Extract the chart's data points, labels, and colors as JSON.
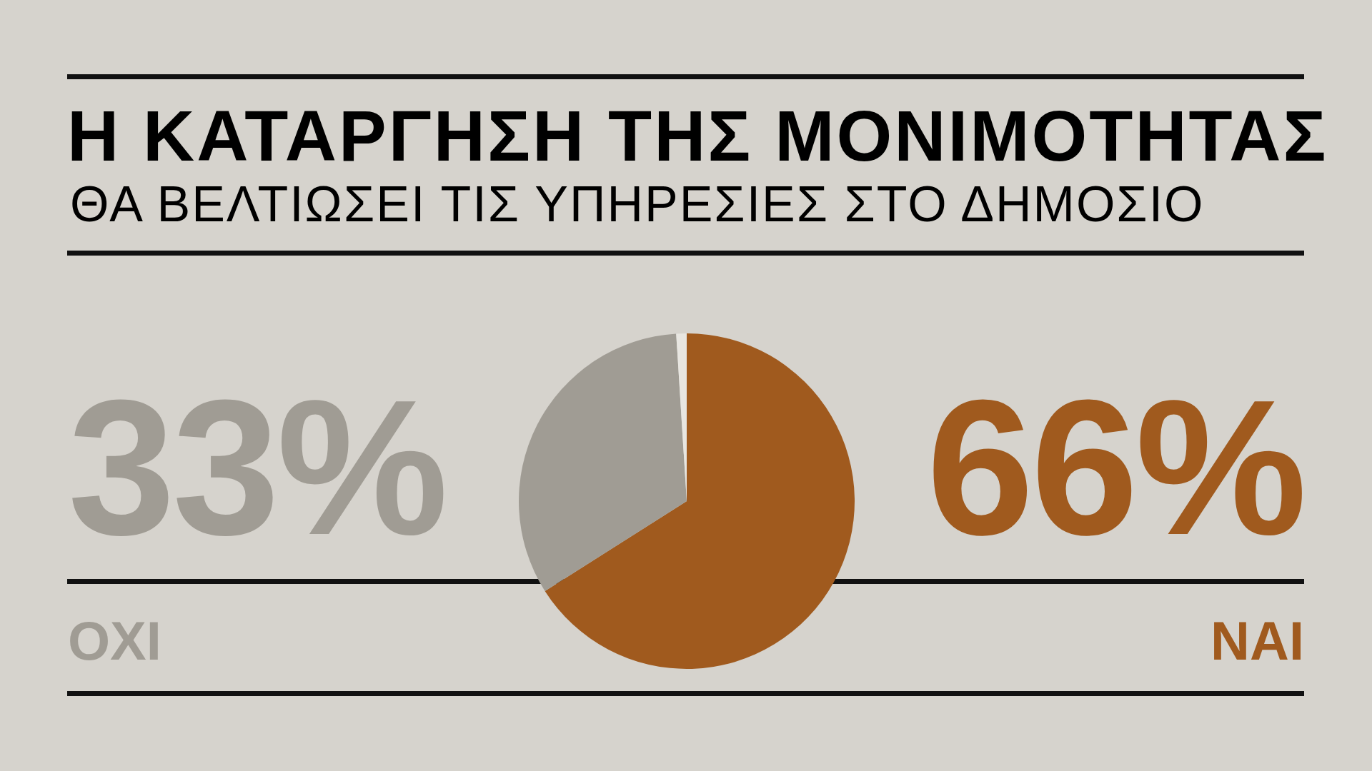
{
  "chart_data": {
    "type": "pie",
    "title": "Η ΚΑΤΑΡΓΗΣΗ ΤΗΣ ΜΟΝΙΜΟΤΗΤΑΣ",
    "subtitle": "ΘΑ ΒΕΛΤΙΩΣΕΙ ΤΙΣ ΥΠΗΡΕΣΙΕΣ ΣΤΟ ΔΗΜΟΣΙΟ",
    "categories": [
      "ΝΑΙ",
      "ΟΧΙ",
      null
    ],
    "values": [
      66,
      33,
      1
    ],
    "colors": [
      "#a05a1e",
      "#a09c94",
      "#e8e6e1"
    ],
    "value_labels": [
      "66%",
      "33%",
      null
    ]
  }
}
